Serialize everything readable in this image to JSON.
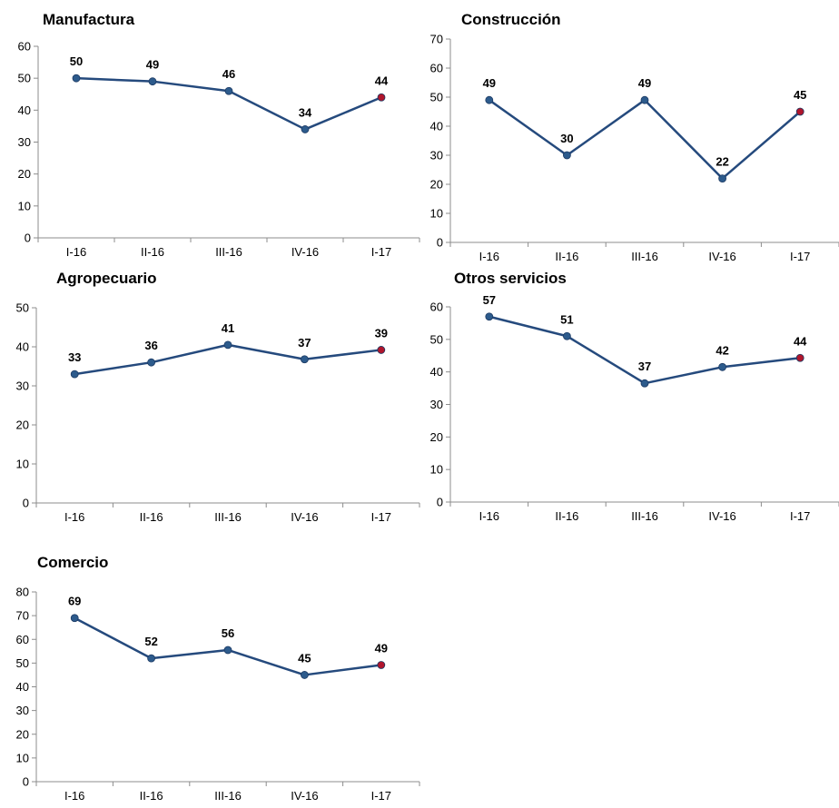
{
  "colors": {
    "line": "#254a7d",
    "marker": "#2d5b8c",
    "last_marker": "#b0152c",
    "axis": "#8c8c8c"
  },
  "chart_data": [
    {
      "type": "line",
      "title": "Manufactura",
      "categories": [
        "I-16",
        "II-16",
        "III-16",
        "IV-16",
        "I-17"
      ],
      "values": [
        50,
        49,
        46,
        34,
        44
      ],
      "labels": [
        "50",
        "49",
        "46",
        "34",
        "44"
      ],
      "ylim": [
        0,
        60
      ],
      "yticks": [
        0,
        10,
        20,
        30,
        40,
        50,
        60
      ],
      "grid": false
    },
    {
      "type": "line",
      "title": "Construcción",
      "categories": [
        "I-16",
        "II-16",
        "III-16",
        "IV-16",
        "I-17"
      ],
      "values": [
        49,
        30,
        49,
        22,
        45
      ],
      "labels": [
        "49",
        "30",
        "49",
        "22",
        "45"
      ],
      "ylim": [
        0,
        70
      ],
      "yticks": [
        0,
        10,
        20,
        30,
        40,
        50,
        60,
        70
      ],
      "grid": false
    },
    {
      "type": "line",
      "title": "Agropecuario",
      "categories": [
        "I-16",
        "II-16",
        "III-16",
        "IV-16",
        "I-17"
      ],
      "values": [
        33,
        36,
        40.5,
        36.8,
        39.2
      ],
      "labels": [
        "33",
        "36",
        "41",
        "37",
        "39"
      ],
      "ylim": [
        0,
        50
      ],
      "yticks": [
        0,
        10,
        20,
        30,
        40,
        50
      ],
      "grid": false
    },
    {
      "type": "line",
      "title": "Otros servicios",
      "categories": [
        "I-16",
        "II-16",
        "III-16",
        "IV-16",
        "I-17"
      ],
      "values": [
        57,
        51,
        36.5,
        41.5,
        44.3
      ],
      "labels": [
        "57",
        "51",
        "37",
        "42",
        "44"
      ],
      "ylim": [
        0,
        60
      ],
      "yticks": [
        0,
        10,
        20,
        30,
        40,
        50,
        60
      ],
      "grid": false
    },
    {
      "type": "line",
      "title": "Comercio",
      "categories": [
        "I-16",
        "II-16",
        "III-16",
        "IV-16",
        "I-17"
      ],
      "values": [
        69,
        52,
        55.5,
        45,
        49.2
      ],
      "labels": [
        "69",
        "52",
        "56",
        "45",
        "49"
      ],
      "ylim": [
        0,
        80
      ],
      "yticks": [
        0,
        10,
        20,
        30,
        40,
        50,
        60,
        70,
        80
      ],
      "grid": false
    }
  ]
}
